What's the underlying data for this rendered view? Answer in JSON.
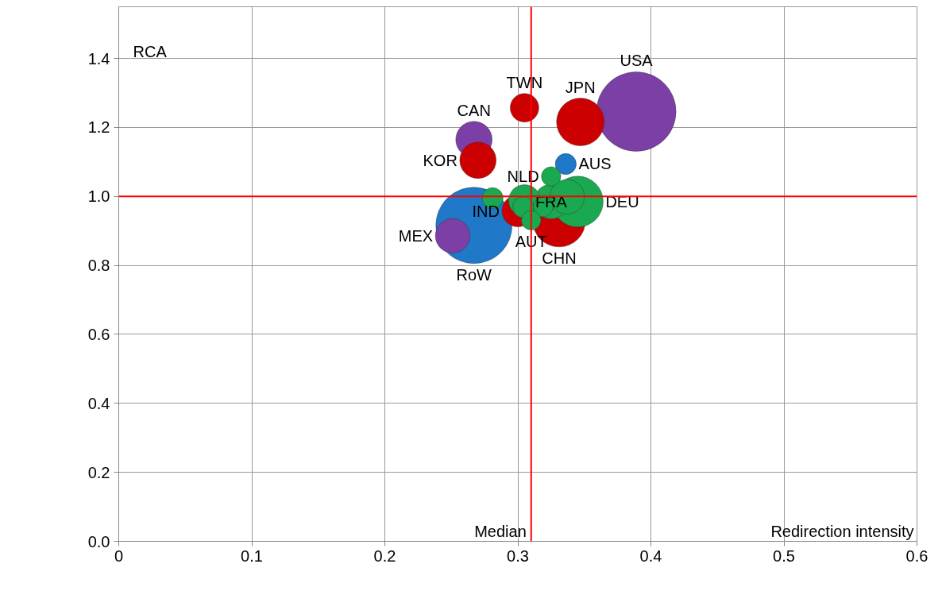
{
  "chart_data": {
    "type": "bubble",
    "xlabel": "Redirection intensity",
    "ylabel": "RCA",
    "xlim": [
      0,
      0.6
    ],
    "ylim": [
      0,
      1.55
    ],
    "xticks": [
      0,
      {
        "value": 0.1,
        "label": "0.1"
      },
      {
        "value": 0.2,
        "label": "0.2"
      },
      {
        "value": 0.3,
        "label": "0.3"
      },
      {
        "value": 0.4,
        "label": "0.4"
      },
      {
        "value": 0.5,
        "label": "0.5"
      },
      {
        "value": 0.6,
        "label": "0.6"
      }
    ],
    "yticks": [
      {
        "value": 0,
        "label": "0.0"
      },
      {
        "value": 0.2,
        "label": "0.2"
      },
      {
        "value": 0.4,
        "label": "0.4"
      },
      {
        "value": 0.6,
        "label": "0.6"
      },
      {
        "value": 0.8,
        "label": "0.8"
      },
      {
        "value": 1.0,
        "label": "1.0"
      },
      {
        "value": 1.2,
        "label": "1.2"
      },
      {
        "value": 1.4,
        "label": "1.4"
      }
    ],
    "grid": true,
    "ref_lines": [
      {
        "axis": "x",
        "value": 0.31,
        "label": "Median",
        "color": "#ff0000"
      },
      {
        "axis": "y",
        "value": 1.0,
        "color": "#ff0000"
      }
    ],
    "series": [
      {
        "name": "RoW",
        "color": "#1f78c8",
        "x": [
          0.267
        ],
        "values": [
          0.916
        ],
        "sizes": [
          0.92
        ]
      },
      {
        "name": "USA",
        "color": "#7b3fa6",
        "x": [
          0.389
        ],
        "values": [
          1.246
        ],
        "sizes": [
          1.0
        ]
      },
      {
        "name": "CHN",
        "color": "#cc0000",
        "x": [
          0.331
        ],
        "values": [
          0.93
        ],
        "sizes": [
          0.44
        ]
      },
      {
        "name": "JPN",
        "color": "#cc0000",
        "x": [
          0.347
        ],
        "values": [
          1.216
        ],
        "sizes": [
          0.36
        ]
      },
      {
        "name": "DEU",
        "color": "#1aa850",
        "x": [
          0.345
        ],
        "values": [
          0.985
        ],
        "sizes": [
          0.41
        ]
      },
      {
        "name": "CAN",
        "color": "#7b3fa6",
        "x": [
          0.267
        ],
        "values": [
          1.165
        ],
        "sizes": [
          0.21
        ]
      },
      {
        "name": "KOR",
        "color": "#cc0000",
        "x": [
          0.27
        ],
        "values": [
          1.105
        ],
        "sizes": [
          0.21
        ]
      },
      {
        "name": "MEX",
        "color": "#7b3fa6",
        "x": [
          0.251
        ],
        "values": [
          0.886
        ],
        "sizes": [
          0.19
        ]
      },
      {
        "name": "FRA",
        "color": "#1aa850",
        "x": [
          0.325
        ],
        "values": [
          0.985
        ],
        "sizes": [
          0.19
        ]
      },
      {
        "color": "#1aa850",
        "x": [
          0.337
        ],
        "values": [
          0.999
        ],
        "sizes": [
          0.19
        ]
      },
      {
        "name": "IND",
        "color": "#cc0000",
        "x": [
          0.3
        ],
        "values": [
          0.958
        ],
        "sizes": [
          0.16
        ]
      },
      {
        "color": "#1aa850",
        "x": [
          0.305
        ],
        "values": [
          0.988
        ],
        "sizes": [
          0.16
        ]
      },
      {
        "name": "TWN",
        "color": "#cc0000",
        "x": [
          0.305
        ],
        "values": [
          1.257
        ],
        "sizes": [
          0.13
        ]
      },
      {
        "name": "AUS",
        "color": "#1f78c8",
        "x": [
          0.336
        ],
        "values": [
          1.094
        ],
        "sizes": [
          0.07
        ]
      },
      {
        "name": "NLD",
        "color": "#1aa850",
        "x": [
          0.325
        ],
        "values": [
          1.058
        ],
        "sizes": [
          0.06
        ]
      },
      {
        "color": "#1aa850",
        "x": [
          0.281
        ],
        "values": [
          0.995
        ],
        "sizes": [
          0.07
        ]
      },
      {
        "color": "#1aa850",
        "x": [
          0.304
        ],
        "values": [
          0.969
        ],
        "sizes": [
          0.07
        ]
      },
      {
        "color": "#1aa850",
        "x": [
          0.319
        ],
        "values": [
          0.969
        ],
        "sizes": [
          0.06
        ]
      },
      {
        "name": "AUT",
        "color": "#1aa850",
        "x": [
          0.31
        ],
        "values": [
          0.931
        ],
        "sizes": [
          0.06
        ]
      }
    ]
  }
}
